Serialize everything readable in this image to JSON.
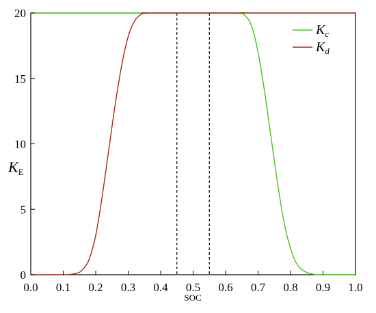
{
  "chart_data": {
    "type": "line",
    "title": "",
    "xlabel": "SOC",
    "ylabel": {
      "main": "K",
      "sub": "E"
    },
    "xlim": [
      0.0,
      1.0
    ],
    "ylim": [
      0,
      20
    ],
    "x_ticks": [
      "0.0",
      "0.1",
      "0.2",
      "0.3",
      "0.4",
      "0.5",
      "0.6",
      "0.7",
      "0.8",
      "0.9",
      "1.0"
    ],
    "y_ticks": [
      "0",
      "5",
      "10",
      "15",
      "20"
    ],
    "grid": false,
    "legend_position": "top-right",
    "reference_lines": {
      "style": "dashed",
      "x": [
        0.45,
        0.55
      ]
    },
    "series": [
      {
        "name": "Kc",
        "legend": {
          "main": "K",
          "sub": "c"
        },
        "color": "#49c21f",
        "x": [
          0.0,
          0.6,
          0.64,
          0.66,
          0.68,
          0.7,
          0.72,
          0.74,
          0.76,
          0.78,
          0.8,
          0.82,
          0.84,
          0.86,
          0.88,
          0.9,
          1.0
        ],
        "y": [
          20,
          20,
          20,
          19.8,
          19.0,
          17.0,
          14.0,
          10.5,
          7.0,
          4.0,
          2.0,
          0.8,
          0.3,
          0.1,
          0.0,
          0.0,
          0.0
        ]
      },
      {
        "name": "Kd",
        "legend": {
          "main": "K",
          "sub": "d"
        },
        "color": "#a52a0f",
        "x": [
          0.0,
          0.1,
          0.14,
          0.16,
          0.18,
          0.2,
          0.22,
          0.24,
          0.26,
          0.28,
          0.3,
          0.32,
          0.34,
          0.36,
          0.4,
          1.0
        ],
        "y": [
          0.0,
          0.0,
          0.1,
          0.4,
          1.2,
          3.0,
          6.0,
          9.5,
          13.0,
          16.0,
          18.2,
          19.4,
          19.9,
          20,
          20,
          20
        ]
      }
    ]
  }
}
